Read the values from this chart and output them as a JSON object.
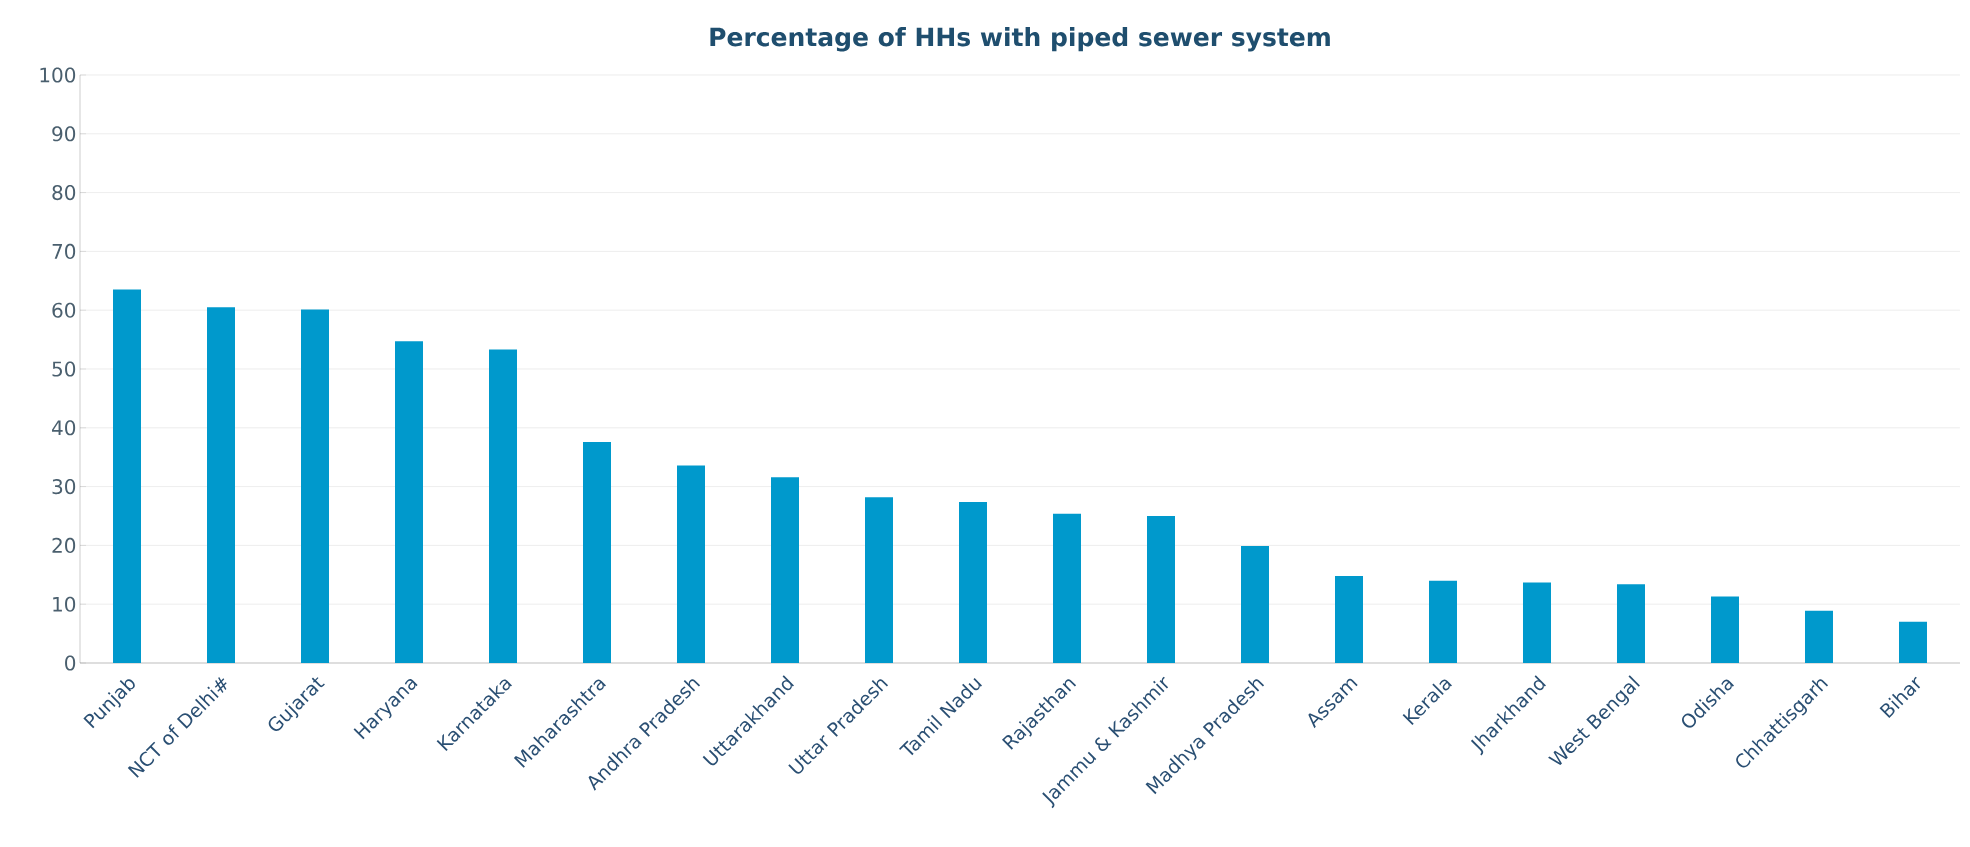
{
  "chart_data": {
    "type": "bar",
    "title": "Percentage of HHs with piped sewer system",
    "categories": [
      "Punjab",
      "NCT of Delhi#",
      "Gujarat",
      "Haryana",
      "Karnataka",
      "Maharashtra",
      "Andhra Pradesh",
      "Uttarakhand",
      "Uttar Pradesh",
      "Tamil Nadu",
      "Rajasthan",
      "Jammu & Kashmir",
      "Madhya Pradesh",
      "Assam",
      "Kerala",
      "Jharkhand",
      "West Bengal",
      "Odisha",
      "Chhattisgarh",
      "Bihar"
    ],
    "values": [
      63.5,
      60.5,
      60.1,
      54.7,
      53.3,
      37.6,
      33.6,
      31.6,
      28.2,
      27.4,
      25.4,
      25.0,
      19.9,
      14.8,
      14.0,
      13.7,
      13.4,
      11.3,
      8.9,
      7.0
    ],
    "color": "#0099cc",
    "ylim": [
      0,
      100
    ],
    "yticks": [
      0,
      10,
      20,
      30,
      40,
      50,
      60,
      70,
      80,
      90,
      100
    ],
    "grid": "y"
  }
}
